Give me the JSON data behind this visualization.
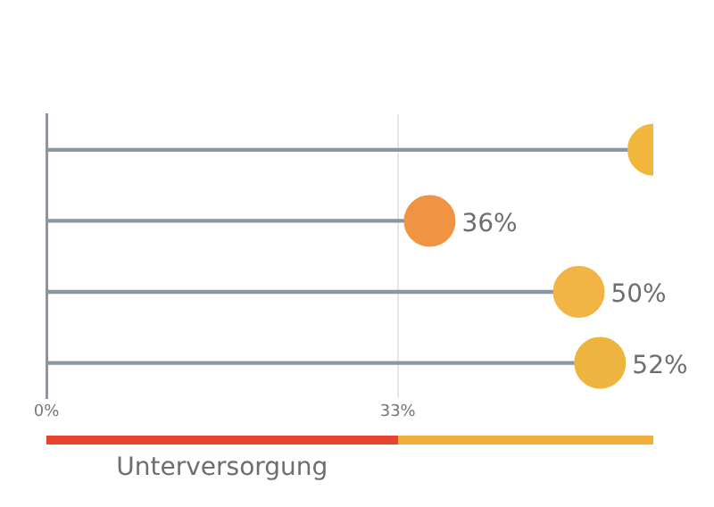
{
  "chart_data": {
    "type": "lollipop",
    "orientation": "horizontal",
    "categories": [
      null,
      null,
      null,
      null
    ],
    "values": [
      57,
      36,
      50,
      52
    ],
    "colors": [
      "#f0b73c",
      "#ef9443",
      "#f2b445",
      "#eeb440"
    ],
    "value_labels": [
      null,
      "36%",
      "50%",
      "52%"
    ],
    "xlim": [
      0,
      57
    ],
    "xticks": [
      {
        "value": 0,
        "label": "0%"
      },
      {
        "value": 33,
        "label": "33%"
      }
    ],
    "annotations": [
      "Unterversorgung"
    ],
    "grid": "x",
    "tick_labels": "x",
    "legend": false,
    "marker": "circle"
  }
}
